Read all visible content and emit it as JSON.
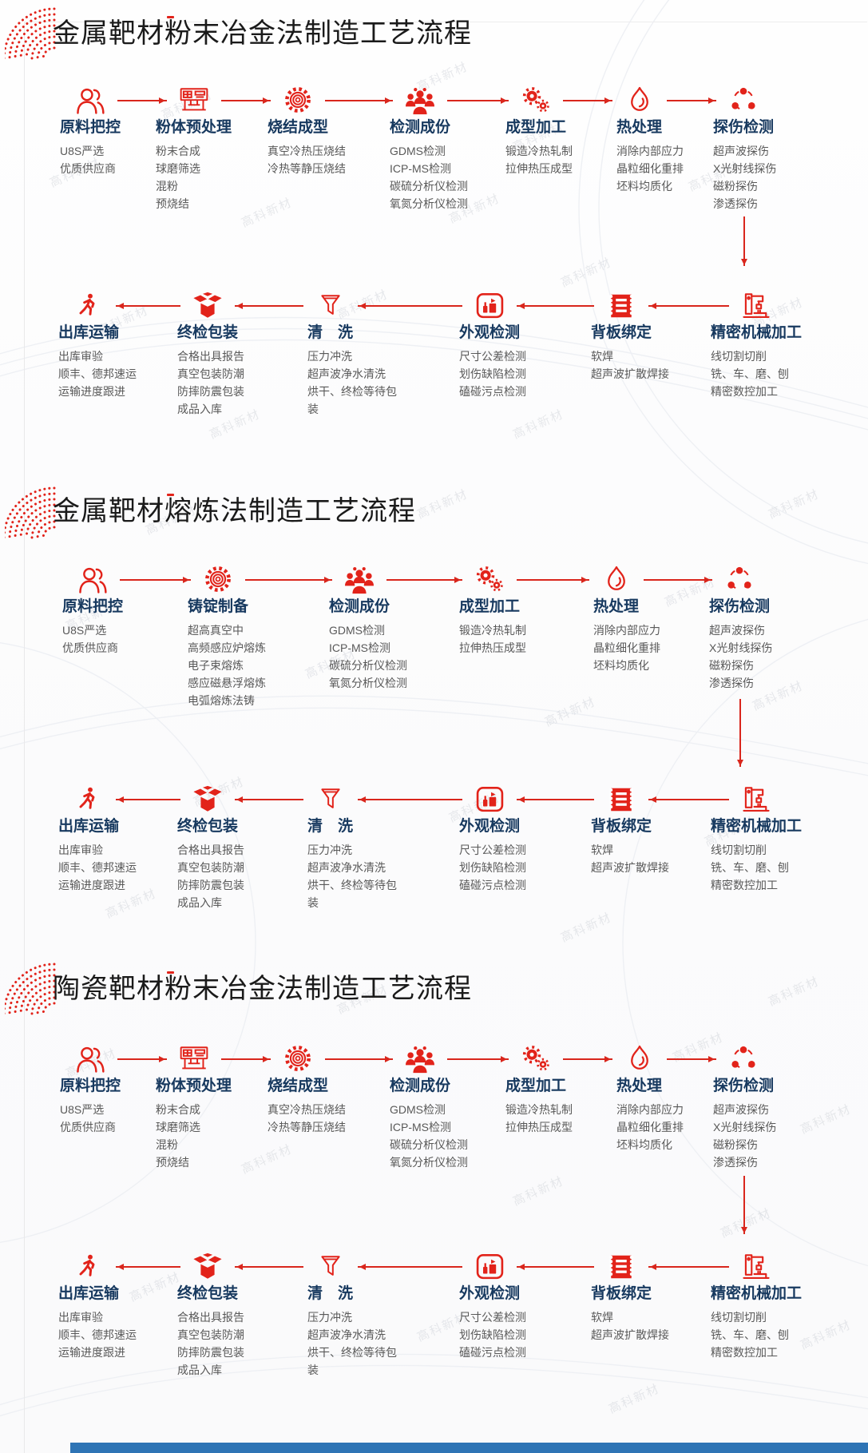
{
  "page": {
    "watermark_text": "高科新材",
    "footer_bar_color": "#2e74b5",
    "colors": {
      "accent_red": "#e2231a",
      "arrow_red": "#d9261c",
      "step_title_blue": "#17395f",
      "desc_gray": "#595959",
      "main_title": "#1a1a1a"
    }
  },
  "sections": [
    {
      "title": "金属靶材粉末冶金法制造工艺流程",
      "row1": [
        {
          "icon": "dual-person",
          "title": "原料把控",
          "lines": [
            "U8S严选",
            "优质供应商"
          ]
        },
        {
          "icon": "mill-machine",
          "title": "粉体预处理",
          "lines": [
            "粉末合成",
            "球磨筛选",
            "混粉",
            "预烧结"
          ]
        },
        {
          "icon": "ring-gear",
          "title": "烧结成型",
          "lines": [
            "真空冷热压烧结",
            "冷热等静压烧结"
          ]
        },
        {
          "icon": "crowd",
          "title": "检测成份",
          "lines": [
            "GDMS检测",
            "ICP-MS检测",
            "碳硫分析仪检测",
            "氧氮分析仪检测"
          ]
        },
        {
          "icon": "gears",
          "title": "成型加工",
          "lines": [
            "锻造冷热轧制",
            "拉伸热压成型"
          ]
        },
        {
          "icon": "flame",
          "title": "热处理",
          "lines": [
            "消除内部应力",
            "晶粒细化重排",
            "坯料均质化"
          ]
        },
        {
          "icon": "triad-network",
          "title": "探伤检测",
          "lines": [
            "超声波探伤",
            "X光射线探伤",
            "磁粉探伤",
            "渗透探伤"
          ]
        }
      ],
      "row2": [
        {
          "icon": "walking-person",
          "title": "出库运输",
          "lines": [
            "出库审验",
            "顺丰、德邦速运",
            "运输进度跟进"
          ]
        },
        {
          "icon": "open-box",
          "title": "终检包装",
          "lines": [
            "合格出具报告",
            "真空包装防潮",
            "防摔防震包装",
            "成品入库"
          ]
        },
        {
          "icon": "funnel",
          "title": "清　洗",
          "lines": [
            "压力冲洗",
            "超声波净水清洗",
            "烘干、终检等待包装"
          ]
        },
        {
          "icon": "photo-frame",
          "title": "外观检测",
          "lines": [
            "尺寸公差检测",
            "划伤缺陷检测",
            "磕碰污点检测"
          ]
        },
        {
          "icon": "perforated-stamp",
          "title": "背板绑定",
          "lines": [
            "软焊",
            "超声波扩散焊接"
          ]
        },
        {
          "icon": "cnc-machine",
          "title": "精密机械加工",
          "lines": [
            "线切割切削",
            "铣、车、磨、刨",
            "精密数控加工"
          ]
        }
      ]
    },
    {
      "title": "金属靶材熔炼法制造工艺流程",
      "row1": [
        {
          "icon": "dual-person",
          "title": "原料把控",
          "lines": [
            "U8S严选",
            "优质供应商"
          ]
        },
        {
          "icon": "ring-gear",
          "title": "铸锭制备",
          "lines": [
            "超高真空中",
            "高频感应炉熔炼",
            "电子束熔炼",
            "感应磁悬浮熔炼",
            "电弧熔炼法铸"
          ]
        },
        {
          "icon": "crowd",
          "title": "检测成份",
          "lines": [
            "GDMS检测",
            "ICP-MS检测",
            "碳硫分析仪检测",
            "氧氮分析仪检测"
          ]
        },
        {
          "icon": "gears",
          "title": "成型加工",
          "lines": [
            "锻造冷热轧制",
            "拉伸热压成型"
          ]
        },
        {
          "icon": "flame",
          "title": "热处理",
          "lines": [
            "消除内部应力",
            "晶粒细化重排",
            "坯料均质化"
          ]
        },
        {
          "icon": "triad-network",
          "title": "探伤检测",
          "lines": [
            "超声波探伤",
            "X光射线探伤",
            "磁粉探伤",
            "渗透探伤"
          ]
        }
      ],
      "row2": [
        {
          "icon": "walking-person",
          "title": "出库运输",
          "lines": [
            "出库审验",
            "顺丰、德邦速运",
            "运输进度跟进"
          ]
        },
        {
          "icon": "open-box",
          "title": "终检包装",
          "lines": [
            "合格出具报告",
            "真空包装防潮",
            "防摔防震包装",
            "成品入库"
          ]
        },
        {
          "icon": "funnel",
          "title": "清　洗",
          "lines": [
            "压力冲洗",
            "超声波净水清洗",
            "烘干、终检等待包装"
          ]
        },
        {
          "icon": "photo-frame",
          "title": "外观检测",
          "lines": [
            "尺寸公差检测",
            "划伤缺陷检测",
            "磕碰污点检测"
          ]
        },
        {
          "icon": "perforated-stamp",
          "title": "背板绑定",
          "lines": [
            "软焊",
            "超声波扩散焊接"
          ]
        },
        {
          "icon": "cnc-machine",
          "title": "精密机械加工",
          "lines": [
            "线切割切削",
            "铣、车、磨、刨",
            "精密数控加工"
          ]
        }
      ]
    },
    {
      "title": "陶瓷靶材粉末冶金法制造工艺流程",
      "row1": [
        {
          "icon": "dual-person",
          "title": "原料把控",
          "lines": [
            "U8S严选",
            "优质供应商"
          ]
        },
        {
          "icon": "mill-machine",
          "title": "粉体预处理",
          "lines": [
            "粉末合成",
            "球磨筛选",
            "混粉",
            "预烧结"
          ]
        },
        {
          "icon": "ring-gear",
          "title": "烧结成型",
          "lines": [
            "真空冷热压烧结",
            "冷热等静压烧结"
          ]
        },
        {
          "icon": "crowd",
          "title": "检测成份",
          "lines": [
            "GDMS检测",
            "ICP-MS检测",
            "碳硫分析仪检测",
            "氧氮分析仪检测"
          ]
        },
        {
          "icon": "gears",
          "title": "成型加工",
          "lines": [
            "锻造冷热轧制",
            "拉伸热压成型"
          ]
        },
        {
          "icon": "flame",
          "title": "热处理",
          "lines": [
            "消除内部应力",
            "晶粒细化重排",
            "坯料均质化"
          ]
        },
        {
          "icon": "triad-network",
          "title": "探伤检测",
          "lines": [
            "超声波探伤",
            "X光射线探伤",
            "磁粉探伤",
            "渗透探伤"
          ]
        }
      ],
      "row2": [
        {
          "icon": "walking-person",
          "title": "出库运输",
          "lines": [
            "出库审验",
            "顺丰、德邦速运",
            "运输进度跟进"
          ]
        },
        {
          "icon": "open-box",
          "title": "终检包装",
          "lines": [
            "合格出具报告",
            "真空包装防潮",
            "防摔防震包装",
            "成品入库"
          ]
        },
        {
          "icon": "funnel",
          "title": "清　洗",
          "lines": [
            "压力冲洗",
            "超声波净水清洗",
            "烘干、终检等待包装"
          ]
        },
        {
          "icon": "photo-frame",
          "title": "外观检测",
          "lines": [
            "尺寸公差检测",
            "划伤缺陷检测",
            "磕碰污点检测"
          ]
        },
        {
          "icon": "perforated-stamp",
          "title": "背板绑定",
          "lines": [
            "软焊",
            "超声波扩散焊接"
          ]
        },
        {
          "icon": "cnc-machine",
          "title": "精密机械加工",
          "lines": [
            "线切割切削",
            "铣、车、磨、刨",
            "精密数控加工"
          ]
        }
      ]
    }
  ]
}
